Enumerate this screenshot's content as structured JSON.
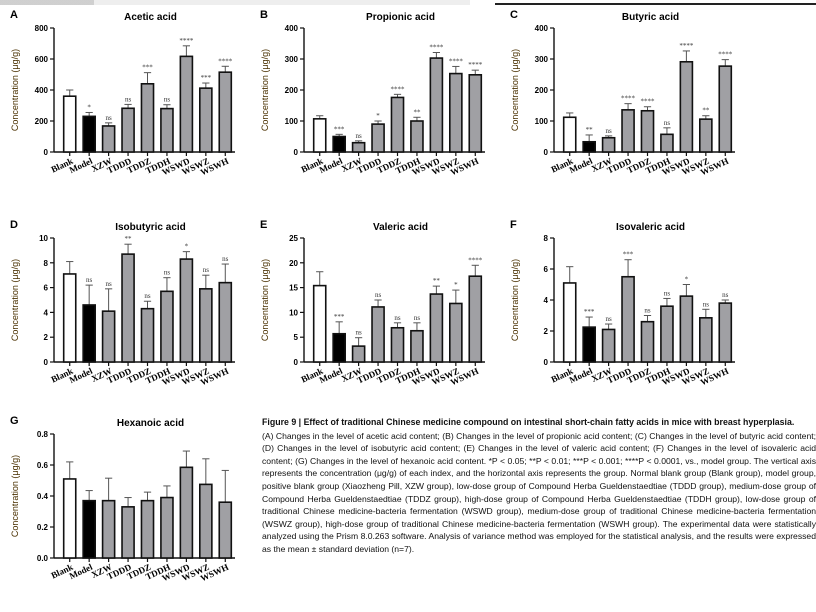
{
  "figure": {
    "caption_title": "Figure 9 | Effect of traditional Chinese medicine compound on intestinal short-chain fatty acids in mice with breast hyperplasia.",
    "caption_body": "(A) Changes in the level of acetic acid content; (B) Changes in the level of propionic acid content; (C) Changes in the level of butyric acid content; (D) Changes in the level of isobutyric acid content; (E) Changes in the level of valeric acid content; (F) Changes in the level of isovaleric acid content; (G) Changes in the level of hexanoic acid content. *P < 0.05; **P < 0.01; ***P < 0.001; ****P < 0.0001, vs., model group. The vertical axis represents the concentration (μg/g) of each index, and the horizontal axis represents the group. Normal blank group (Blank group), model group, positive blank group (Xiaozheng Pill, XZW group), low-dose group of Compound Herba Gueldenstaedtiae (TDDD group), medium-dose group of Compound Herba Gueldenstaedtiae (TDDZ group), high-dose group of Compound Herba Gueldenstaedtiae (TDDH group), low-dose group of traditional Chinese medicine-bacteria fermentation (WSWD group), medium-dose group of traditional Chinese medicine-bacteria fermentation (WSWZ group), high-dose group of traditional Chinese medicine-bacteria fermentation (WSWH group). The experimental data were statistically analyzed using the Prism 8.0.263 software. Analysis of variance method was employed for the statistical analysis, and the results were expressed as the mean ± standard deviation (n=7)."
  },
  "colors": {
    "blank_fill": "#ffffff",
    "model_fill": "#000000",
    "treatment_fill": "#a0a0a4",
    "outline": "#111111",
    "ylabel": "#4a3000"
  },
  "chart_data": [
    {
      "panel": "A",
      "type": "bar",
      "title": "Acetic acid",
      "ylabel": "Concentration (μg/g)",
      "xlabel": "",
      "categories": [
        "Blank",
        "Model",
        "XZW",
        "TDDD",
        "TDDZ",
        "TDDH",
        "WSWD",
        "WSWZ",
        "WSWH"
      ],
      "values": [
        360,
        230,
        168,
        282,
        440,
        280,
        617,
        412,
        515
      ],
      "errors": [
        40,
        25,
        20,
        25,
        72,
        25,
        68,
        33,
        38
      ],
      "significance": [
        "",
        "*",
        "ns",
        "ns",
        "***",
        "ns",
        "****",
        "***",
        "****"
      ],
      "ylim": [
        0,
        800
      ],
      "yticks": [
        0,
        200,
        400,
        600,
        800
      ],
      "grid": false
    },
    {
      "panel": "B",
      "type": "bar",
      "title": "Propionic acid",
      "ylabel": "Concentration (μg/g)",
      "xlabel": "",
      "categories": [
        "Blank",
        "Model",
        "XZW",
        "TDDD",
        "TDDZ",
        "TDDH",
        "WSWD",
        "WSWZ",
        "WSWH"
      ],
      "values": [
        107,
        50,
        30,
        90,
        176,
        100,
        303,
        253,
        249
      ],
      "errors": [
        10,
        7,
        6,
        10,
        10,
        12,
        18,
        23,
        15
      ],
      "significance": [
        "",
        "***",
        "ns",
        "*",
        "****",
        "**",
        "****",
        "****",
        "****"
      ],
      "ylim": [
        0,
        400
      ],
      "yticks": [
        0,
        100,
        200,
        300,
        400
      ],
      "grid": false
    },
    {
      "panel": "C",
      "type": "bar",
      "title": "Butyric acid",
      "ylabel": "Concentration (μg/g)",
      "xlabel": "",
      "categories": [
        "Blank",
        "Model",
        "XZW",
        "TDDD",
        "TDDZ",
        "TDDH",
        "WSWD",
        "WSWZ",
        "WSWH"
      ],
      "values": [
        112,
        33,
        46,
        136,
        133,
        57,
        291,
        106,
        277
      ],
      "errors": [
        14,
        22,
        6,
        20,
        13,
        21,
        35,
        11,
        21
      ],
      "significance": [
        "",
        "**",
        "ns",
        "****",
        "****",
        "ns",
        "****",
        "**",
        "****"
      ],
      "ylim": [
        0,
        400
      ],
      "yticks": [
        0,
        100,
        200,
        300,
        400
      ],
      "grid": false
    },
    {
      "panel": "D",
      "type": "bar",
      "title": "Isobutyric acid",
      "ylabel": "Concentration (μg/g)",
      "xlabel": "",
      "categories": [
        "Blank",
        "Model",
        "XZW",
        "TDDD",
        "TDDZ",
        "TDDH",
        "WSWD",
        "WSWZ",
        "WSWH"
      ],
      "values": [
        7.1,
        4.6,
        4.1,
        8.7,
        4.3,
        5.7,
        8.3,
        5.9,
        6.4
      ],
      "errors": [
        1.0,
        1.6,
        1.8,
        0.8,
        0.6,
        1.1,
        0.6,
        1.1,
        1.5
      ],
      "significance": [
        "",
        "ns",
        "ns",
        "**",
        "ns",
        "ns",
        "*",
        "ns",
        "ns"
      ],
      "ylim": [
        0,
        10
      ],
      "yticks": [
        0,
        2,
        4,
        6,
        8,
        10
      ],
      "grid": false
    },
    {
      "panel": "E",
      "type": "bar",
      "title": "Valeric acid",
      "ylabel": "Concentration (μg/g)",
      "xlabel": "",
      "categories": [
        "Blank",
        "Model",
        "XZW",
        "TDDD",
        "TDDZ",
        "TDDH",
        "WSWD",
        "WSWZ",
        "WSWH"
      ],
      "values": [
        15.4,
        5.7,
        3.2,
        11.1,
        6.9,
        6.3,
        13.7,
        11.8,
        17.3
      ],
      "errors": [
        2.8,
        2.4,
        1.7,
        1.4,
        1.0,
        1.6,
        1.6,
        2.7,
        2.2
      ],
      "significance": [
        "",
        "***",
        "ns",
        "ns",
        "ns",
        "ns",
        "**",
        "*",
        "****"
      ],
      "ylim": [
        0,
        25
      ],
      "yticks": [
        0,
        5,
        10,
        15,
        20,
        25
      ],
      "grid": false
    },
    {
      "panel": "F",
      "type": "bar",
      "title": "Isovaleric acid",
      "ylabel": "Concentration (μg/g)",
      "xlabel": "",
      "categories": [
        "Blank",
        "Model",
        "XZW",
        "TDDD",
        "TDDZ",
        "TDDH",
        "WSWD",
        "WSWZ",
        "WSWH"
      ],
      "values": [
        5.1,
        2.25,
        2.1,
        5.5,
        2.6,
        3.6,
        4.25,
        2.85,
        3.8
      ],
      "errors": [
        1.05,
        0.65,
        0.35,
        1.1,
        0.4,
        0.5,
        0.75,
        0.55,
        0.2
      ],
      "significance": [
        "",
        "***",
        "ns",
        "***",
        "ns",
        "ns",
        "*",
        "ns",
        "ns"
      ],
      "ylim": [
        0,
        8
      ],
      "yticks": [
        0,
        2,
        4,
        6,
        8
      ],
      "grid": false
    },
    {
      "panel": "G",
      "type": "bar",
      "title": "Hexanoic acid",
      "ylabel": "Concentration (μg/g)",
      "xlabel": "",
      "categories": [
        "Blank",
        "Model",
        "XZW",
        "TDDD",
        "TDDZ",
        "TDDH",
        "WSWD",
        "WSWZ",
        "WSWH"
      ],
      "values": [
        0.51,
        0.37,
        0.37,
        0.33,
        0.37,
        0.39,
        0.585,
        0.475,
        0.36
      ],
      "errors": [
        0.11,
        0.065,
        0.145,
        0.06,
        0.055,
        0.075,
        0.105,
        0.165,
        0.205
      ],
      "significance": [
        "",
        "",
        "",
        "",
        "",
        "",
        "",
        "",
        ""
      ],
      "ylim": [
        0,
        0.8
      ],
      "yticks": [
        0.0,
        0.2,
        0.4,
        0.6,
        0.8
      ],
      "tick_format": "0.0",
      "grid": false
    }
  ]
}
